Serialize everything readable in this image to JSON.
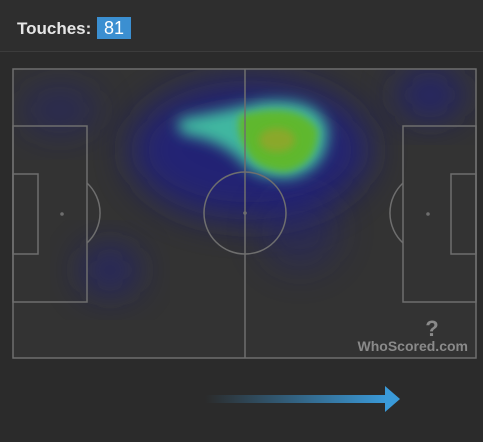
{
  "header": {
    "label": "Touches:",
    "value": 81
  },
  "watermark": "WhoScored.com"
}
